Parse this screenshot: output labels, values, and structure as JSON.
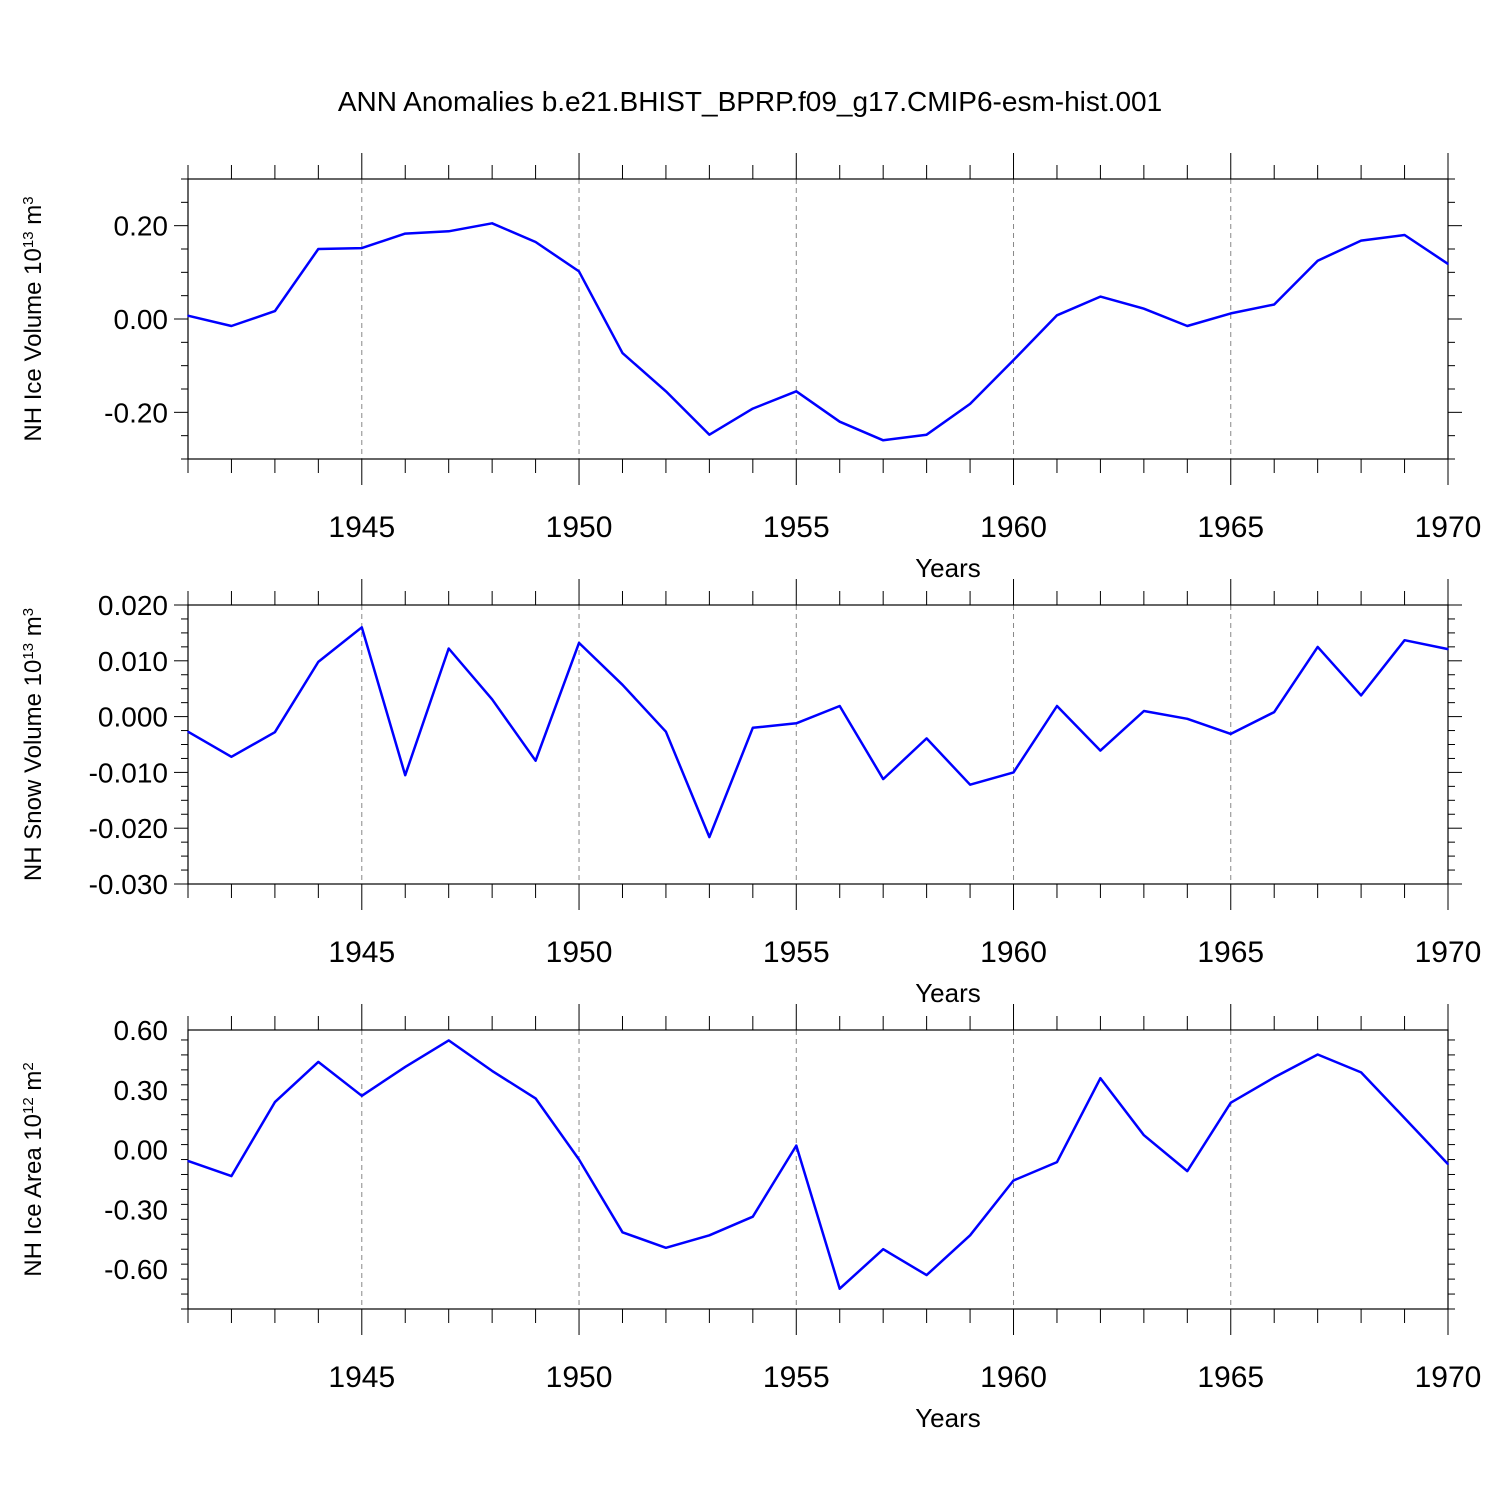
{
  "title": "ANN Anomalies b.e21.BHIST_BPRP.f09_g17.CMIP6-esm-hist.001",
  "line_color": "#0000ff",
  "chart_data": [
    {
      "type": "line",
      "ylabel": "NH Ice Volume 10",
      "ylabel_sup": "13",
      "ylabel_unit": " m",
      "ylabel_unit_sup": "3",
      "xlabel": "Years",
      "xlim": [
        1941,
        1970
      ],
      "ylim": [
        -0.3,
        0.3
      ],
      "yticks": [
        -0.2,
        0.0,
        0.2
      ],
      "ytick_labels": [
        "-0.20",
        "0.00",
        "0.20"
      ],
      "xticks": [
        1945,
        1950,
        1955,
        1960,
        1965,
        1970
      ],
      "xtick_labels": [
        "1945",
        "1950",
        "1955",
        "1960",
        "1965",
        "1970"
      ],
      "grid": "vertical dashed at major x ticks",
      "series": [
        {
          "x": [
            1941,
            1942,
            1943,
            1944,
            1945,
            1946,
            1947,
            1948,
            1949,
            1950,
            1951,
            1952,
            1953,
            1954,
            1955,
            1956,
            1957,
            1958,
            1959,
            1960,
            1961,
            1962,
            1963,
            1964,
            1965,
            1966,
            1967,
            1968,
            1969,
            1970
          ],
          "values": [
            0.007,
            -0.015,
            0.017,
            0.15,
            0.152,
            0.183,
            0.188,
            0.205,
            0.165,
            0.102,
            -0.073,
            -0.155,
            -0.248,
            -0.192,
            -0.155,
            -0.22,
            -0.26,
            -0.248,
            -0.182,
            -0.088,
            0.008,
            0.048,
            0.022,
            -0.015,
            0.012,
            0.031,
            0.125,
            0.168,
            0.18,
            0.118
          ]
        }
      ]
    },
    {
      "type": "line",
      "ylabel": "NH Snow Volume 10",
      "ylabel_sup": "13",
      "ylabel_unit": " m",
      "ylabel_unit_sup": "3",
      "xlabel": "Years",
      "xlim": [
        1941,
        1970
      ],
      "ylim": [
        -0.03,
        0.02
      ],
      "yticks": [
        -0.03,
        -0.02,
        -0.01,
        0.0,
        0.01,
        0.02
      ],
      "ytick_labels": [
        "-0.030",
        "-0.020",
        "-0.010",
        "0.000",
        "0.010",
        "0.020"
      ],
      "xticks": [
        1945,
        1950,
        1955,
        1960,
        1965,
        1970
      ],
      "xtick_labels": [
        "1945",
        "1950",
        "1955",
        "1960",
        "1965",
        "1970"
      ],
      "grid": "vertical dashed at major x ticks",
      "series": [
        {
          "x": [
            1941,
            1942,
            1943,
            1944,
            1945,
            1946,
            1947,
            1948,
            1949,
            1950,
            1951,
            1952,
            1953,
            1954,
            1955,
            1956,
            1957,
            1958,
            1959,
            1960,
            1961,
            1962,
            1963,
            1964,
            1965,
            1966,
            1967,
            1968,
            1969,
            1970
          ],
          "values": [
            -0.0027,
            -0.0072,
            -0.0028,
            0.0098,
            0.016,
            -0.0105,
            0.0122,
            0.0031,
            -0.0079,
            0.0132,
            0.0057,
            -0.0027,
            -0.0216,
            -0.002,
            -0.0012,
            0.0019,
            -0.0112,
            -0.0039,
            -0.0122,
            -0.01,
            0.0019,
            -0.0061,
            0.001,
            -0.0004,
            -0.0031,
            0.0008,
            0.0125,
            0.0038,
            0.0137,
            0.0121
          ]
        }
      ]
    },
    {
      "type": "line",
      "ylabel": "NH Ice Area 10",
      "ylabel_sup": "12",
      "ylabel_unit": " m",
      "ylabel_unit_sup": "2",
      "xlabel": "Years",
      "xlim": [
        1941,
        1970
      ],
      "ylim": [
        -0.8,
        0.6
      ],
      "yticks": [
        -0.6,
        -0.3,
        0.0,
        0.3,
        0.6
      ],
      "ytick_labels": [
        "-0.60",
        "-0.30",
        "0.00",
        "0.30",
        "0.60"
      ],
      "xticks": [
        1945,
        1950,
        1955,
        1960,
        1965,
        1970
      ],
      "xtick_labels": [
        "1945",
        "1950",
        "1955",
        "1960",
        "1965",
        "1970"
      ],
      "grid": "vertical dashed at major x ticks",
      "series": [
        {
          "x": [
            1941,
            1942,
            1943,
            1944,
            1945,
            1946,
            1947,
            1948,
            1949,
            1950,
            1951,
            1952,
            1953,
            1954,
            1955,
            1956,
            1957,
            1958,
            1959,
            1960,
            1961,
            1962,
            1963,
            1964,
            1965,
            1966,
            1967,
            1968,
            1969,
            1970
          ],
          "values": [
            -0.057,
            -0.133,
            0.238,
            0.44,
            0.27,
            0.415,
            0.548,
            0.395,
            0.257,
            -0.05,
            -0.415,
            -0.493,
            -0.43,
            -0.337,
            0.02,
            -0.698,
            -0.5,
            -0.63,
            -0.43,
            -0.155,
            -0.063,
            0.358,
            0.072,
            -0.108,
            0.235,
            0.362,
            0.477,
            0.387,
            0.158,
            -0.073
          ]
        }
      ]
    }
  ]
}
